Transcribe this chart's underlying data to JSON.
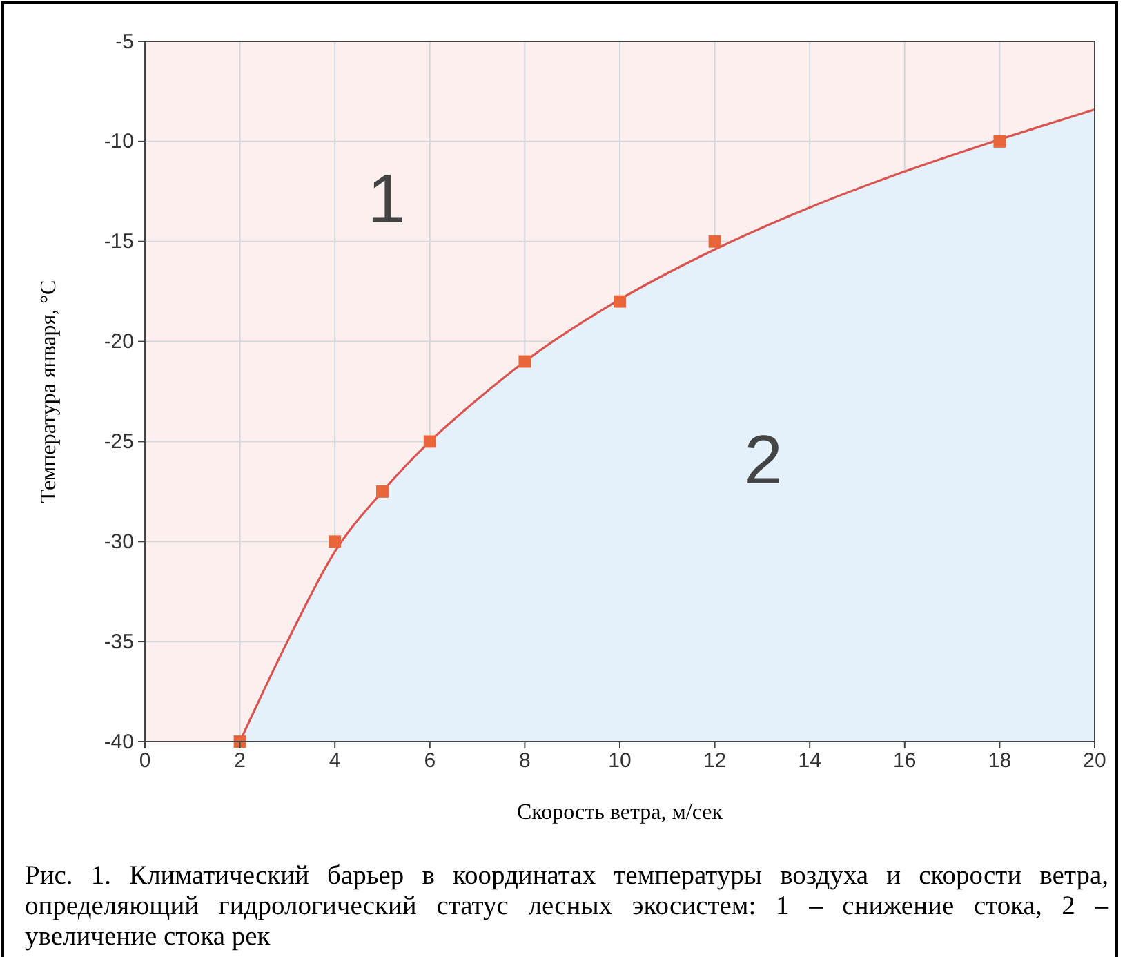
{
  "chart_data": {
    "type": "scatter",
    "xlabel": "Скорость ветра, м/сек",
    "ylabel": "Температура января, °C",
    "xlim": [
      0,
      20
    ],
    "xticks": [
      0,
      2,
      4,
      6,
      8,
      10,
      12,
      14,
      16,
      18,
      20
    ],
    "ylim": [
      -40,
      -5
    ],
    "yticks": [
      -40,
      -35,
      -30,
      -25,
      -20,
      -15,
      -10,
      -5
    ],
    "grid": true,
    "bands": [
      {
        "axis": "y",
        "from": -40,
        "to": -5,
        "color": "#fdefed"
      }
    ],
    "series": [
      {
        "type": "line",
        "color": "#d9534f",
        "x": [
          2,
          3,
          4,
          5,
          6,
          7,
          8,
          10,
          12,
          14,
          16,
          18,
          20
        ],
        "values": [
          -40,
          -35,
          -30.5,
          -27.5,
          -25,
          -22.9,
          -21,
          -17.9,
          -15.4,
          -13.3,
          -11.5,
          -9.9,
          -8.4
        ],
        "lower": [
          -40,
          -40,
          -40,
          -40,
          -40,
          -40,
          -40,
          -40,
          -40,
          -40,
          -40,
          -40,
          -40
        ],
        "upper": [
          -40,
          -35,
          -30.5,
          -27.5,
          -25,
          -22.9,
          -21,
          -17.9,
          -15.4,
          -13.3,
          -11.5,
          -9.9,
          -8.4
        ]
      },
      {
        "type": "scatter",
        "color": "#e8653a",
        "marker": "square",
        "x": [
          2,
          4,
          5,
          6,
          8,
          10,
          12,
          18
        ],
        "values": [
          -40,
          -30,
          -27.5,
          -25,
          -21,
          -18,
          -15,
          -10
        ]
      }
    ],
    "annotations": [
      "1",
      "2",
      "Рис. 1. Климатический барьер в координатах температуры воздуха и скорости ветра, определяющий гидрологический статус лесных экосистем: 1 – снижение стока, 2 – увеличение стока рек"
    ]
  }
}
